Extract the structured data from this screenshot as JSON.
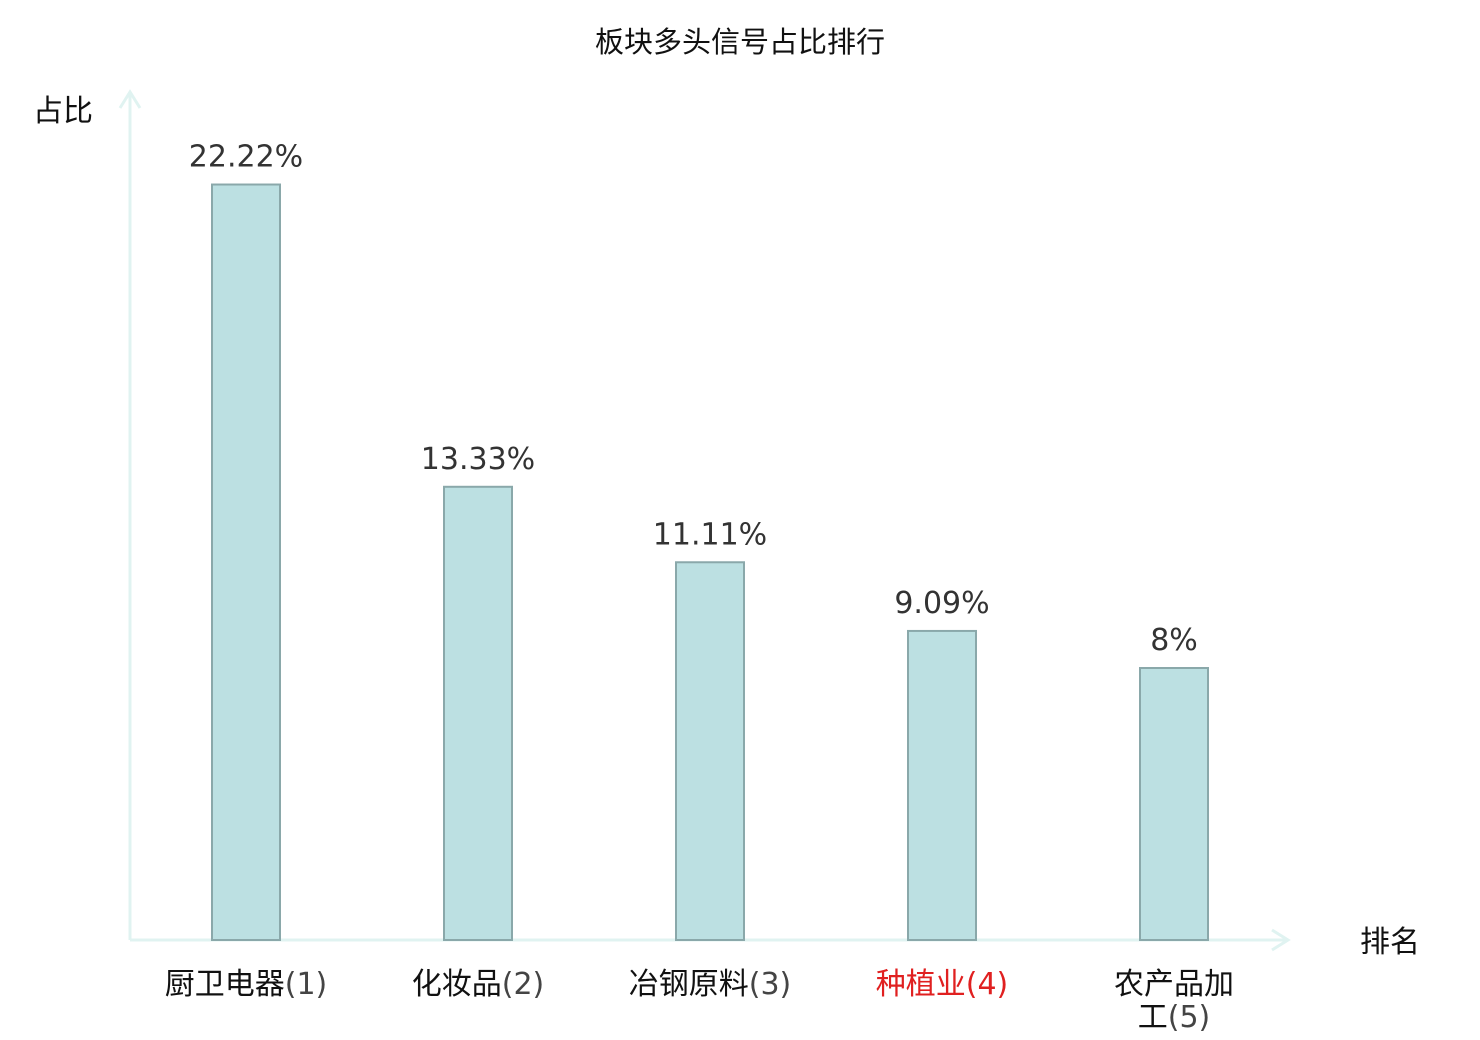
{
  "chart_data": {
    "type": "bar",
    "title": "板块多头信号占比排行",
    "ylabel": "占比",
    "xlabel": "排名",
    "ylim": [
      0,
      25
    ],
    "grid": false,
    "legend": "none",
    "categories": [
      {
        "name": "厨卫电器",
        "rank": "(1)",
        "highlight": false
      },
      {
        "name": "化妆品",
        "rank": "(2)",
        "highlight": false
      },
      {
        "name": "冶钢原料",
        "rank": "(3)",
        "highlight": false
      },
      {
        "name": "种植业",
        "rank": "(4)",
        "highlight": true
      },
      {
        "name": "农产品加工",
        "rank": "(5)",
        "highlight": false
      }
    ],
    "values": [
      22.22,
      13.33,
      11.11,
      9.09,
      8
    ],
    "value_labels": [
      "22.22%",
      "13.33%",
      "11.11%",
      "9.09%",
      "8%"
    ],
    "colors": {
      "bar_fill": "#bce0e2",
      "bar_stroke": "#8aa8aa",
      "axis": "#e0f3f1",
      "highlight": "#e02020"
    }
  }
}
